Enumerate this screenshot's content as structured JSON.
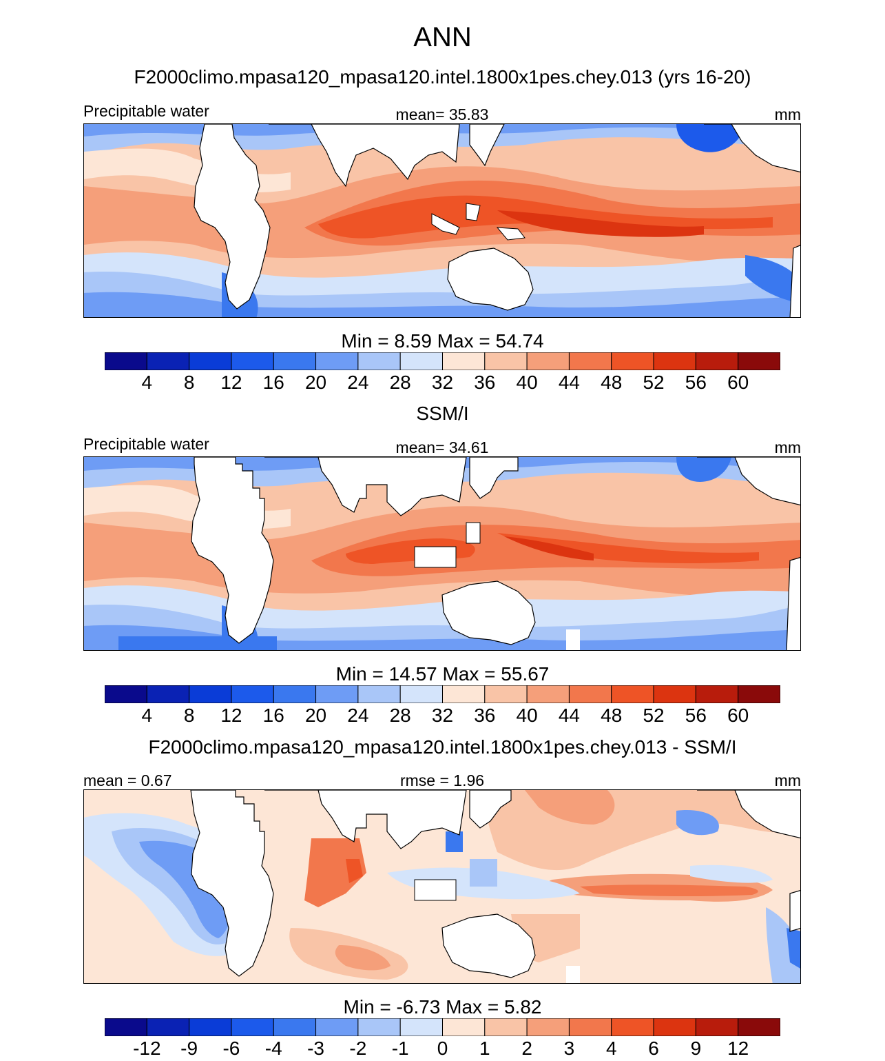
{
  "title": "ANN",
  "panels": [
    {
      "id": "model",
      "heading": "F2000climo.mpasa120_mpasa120.intel.1800x1pes.chey.013 (yrs 16-20)",
      "left_label": "Precipitable water",
      "center_label": "mean=  35.83",
      "units": "mm",
      "minmax": "Min =   8.59 Max =  54.74",
      "colorbar_ticks": [
        "4",
        "8",
        "12",
        "16",
        "20",
        "24",
        "28",
        "32",
        "36",
        "40",
        "44",
        "48",
        "52",
        "56",
        "60"
      ]
    },
    {
      "id": "obs",
      "heading": "SSM/I",
      "left_label": "Precipitable water",
      "center_label": "mean=  34.61",
      "units": "mm",
      "minmax": "Min =  14.57 Max =  55.67",
      "colorbar_ticks": [
        "4",
        "8",
        "12",
        "16",
        "20",
        "24",
        "28",
        "32",
        "36",
        "40",
        "44",
        "48",
        "52",
        "56",
        "60"
      ]
    },
    {
      "id": "diff",
      "heading": "F2000climo.mpasa120_mpasa120.intel.1800x1pes.chey.013 - SSM/I",
      "left_label": "mean =   0.67",
      "center_label": "rmse =   1.96",
      "units": "mm",
      "minmax": "Min =  -6.73 Max =   5.82",
      "colorbar_ticks": [
        "-12",
        "-9",
        "-6",
        "-4",
        "-3",
        "-2",
        "-1",
        "0",
        "1",
        "2",
        "3",
        "4",
        "6",
        "9",
        "12"
      ]
    }
  ],
  "colorbar_colors": [
    "#0a0a8c",
    "#0a22b4",
    "#0a3cd7",
    "#1c5aeb",
    "#3a78ef",
    "#6e9cf5",
    "#a9c6f8",
    "#d4e4fb",
    "#fde6d6",
    "#f9c4a7",
    "#f59f7a",
    "#f2774c",
    "#ee5426",
    "#dc3410",
    "#b81c0c",
    "#8a0a0a"
  ],
  "chart_data": [
    {
      "type": "heatmap",
      "title": "Precipitable water",
      "subtitle": "F2000climo.mpasa120_mpasa120.intel.1800x1pes.chey.013 (yrs 16-20)",
      "units": "mm",
      "mean": 35.83,
      "min": 8.59,
      "max": 54.74,
      "contour_levels": [
        4,
        8,
        12,
        16,
        20,
        24,
        28,
        32,
        36,
        40,
        44,
        48,
        52,
        56,
        60
      ]
    },
    {
      "type": "heatmap",
      "title": "Precipitable water",
      "subtitle": "SSM/I",
      "units": "mm",
      "mean": 34.61,
      "min": 14.57,
      "max": 55.67,
      "contour_levels": [
        4,
        8,
        12,
        16,
        20,
        24,
        28,
        32,
        36,
        40,
        44,
        48,
        52,
        56,
        60
      ]
    },
    {
      "type": "heatmap",
      "title": "F2000climo.mpasa120_mpasa120.intel.1800x1pes.chey.013 - SSM/I",
      "units": "mm",
      "mean": 0.67,
      "rmse": 1.96,
      "min": -6.73,
      "max": 5.82,
      "contour_levels": [
        -12,
        -9,
        -6,
        -4,
        -3,
        -2,
        -1,
        0,
        1,
        2,
        3,
        4,
        6,
        9,
        12
      ]
    }
  ]
}
